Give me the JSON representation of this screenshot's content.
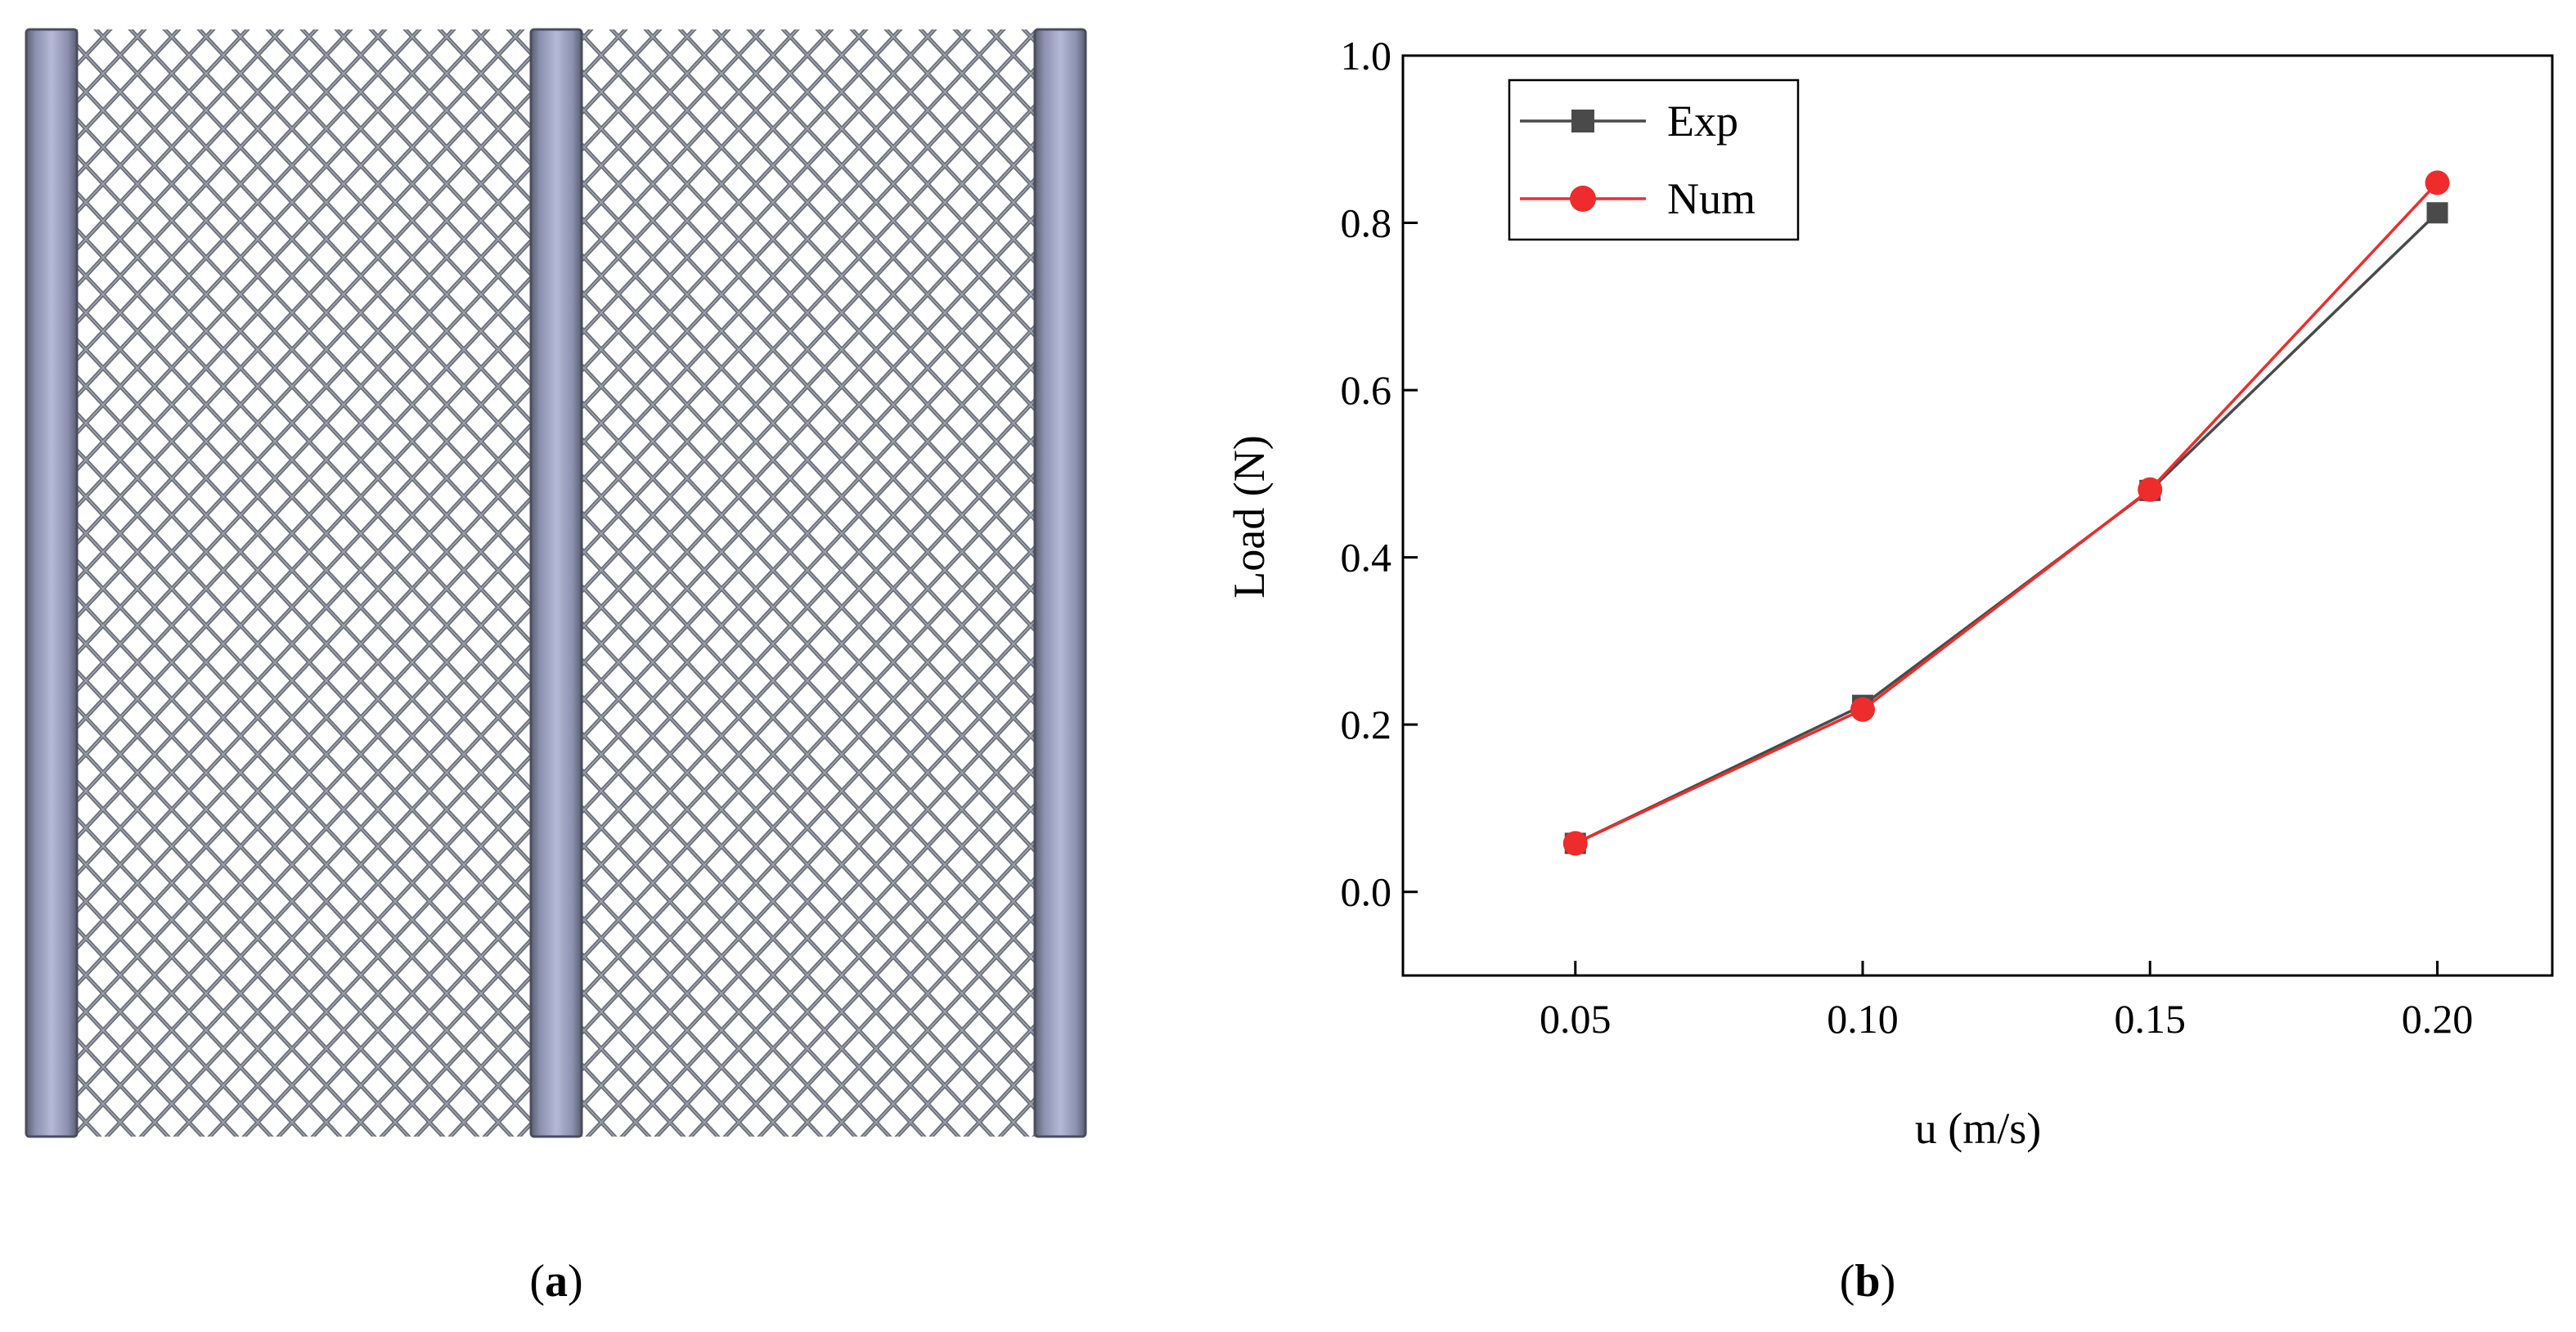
{
  "captions": {
    "a_open": "(",
    "a_letter": "a",
    "a_close": ")",
    "b_open": "(",
    "b_letter": "b",
    "b_close": ")"
  },
  "colors": {
    "exp": "#4a4a4a",
    "num": "#ee2c2c",
    "rod_mid": "#b3b9d6",
    "rod_edge": "#5c5f73",
    "mesh": "#6a6e78"
  },
  "chart_data": {
    "type": "line",
    "title": "",
    "xlabel": "u (m/s)",
    "ylabel": "Load (N)",
    "x": [
      0.05,
      0.1,
      0.15,
      0.2
    ],
    "x_tick_labels": [
      "0.05",
      "0.10",
      "0.15",
      "0.20"
    ],
    "y_ticks": [
      0.0,
      0.2,
      0.4,
      0.6,
      0.8,
      1.0
    ],
    "y_tick_labels": [
      "0.0",
      "0.2",
      "0.4",
      "0.6",
      "0.8",
      "1.0"
    ],
    "xlim": [
      0.02,
      0.22
    ],
    "ylim": [
      -0.1,
      1.0
    ],
    "grid": false,
    "legend_position": "top-left",
    "series": [
      {
        "name": "Exp",
        "marker": "square",
        "values": [
          0.058,
          0.223,
          0.48,
          0.812
        ]
      },
      {
        "name": "Num",
        "marker": "circle",
        "values": [
          0.058,
          0.218,
          0.481,
          0.848
        ]
      }
    ]
  }
}
